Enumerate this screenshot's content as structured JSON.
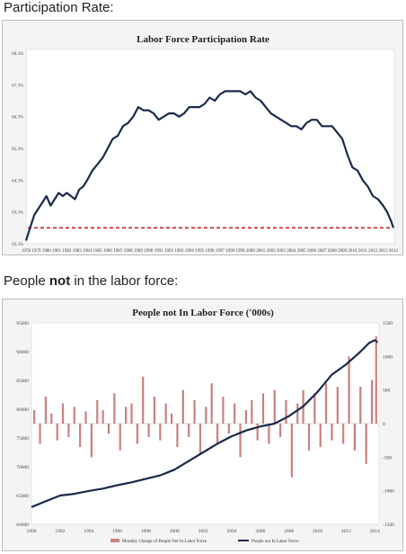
{
  "caption1": {
    "prefix": "Participation Rate:"
  },
  "caption2": {
    "before": "People ",
    "bold": "not",
    "after": " in the labor force:"
  },
  "colors": {
    "line": "#1a2a4a",
    "reference": "#cc2222",
    "bars": "#c98080",
    "background": "#f4f4f4"
  },
  "chart_data": [
    {
      "type": "line",
      "title": "Labor Force Participation Rate",
      "xlabel": "",
      "ylabel": "",
      "x_tick_labels": [
        "1978",
        "1979",
        "1980",
        "1981",
        "1982",
        "1983",
        "1984",
        "1985",
        "1986",
        "1987",
        "1988",
        "1989",
        "1990",
        "1991",
        "1992",
        "1993",
        "1994",
        "1995",
        "1996",
        "1997",
        "1998",
        "1999",
        "2000",
        "2001",
        "2002",
        "2003",
        "2004",
        "2005",
        "2006",
        "2007",
        "2008",
        "2009",
        "2010",
        "2011",
        "2012",
        "2013",
        "2014"
      ],
      "y_tick_labels": [
        "62.3%",
        "63.3%",
        "64.3%",
        "65.3%",
        "66.3%",
        "67.3%",
        "68.3%"
      ],
      "ylim": [
        62.3,
        68.3
      ],
      "xlim": [
        1978,
        2014.1
      ],
      "grid": false,
      "series": [
        {
          "x": [
            1978.0,
            1978.4,
            1978.8,
            1979.2,
            1979.6,
            1980.0,
            1980.4,
            1980.8,
            1981.2,
            1981.6,
            1982.0,
            1982.4,
            1982.8,
            1983.2,
            1983.6,
            1984.0,
            1984.5,
            1985.0,
            1985.5,
            1986.0,
            1986.5,
            1987.0,
            1987.5,
            1988.0,
            1988.5,
            1989.0,
            1989.5,
            1990.0,
            1990.5,
            1991.0,
            1991.5,
            1992.0,
            1992.5,
            1993.0,
            1993.5,
            1994.0,
            1994.5,
            1995.0,
            1995.5,
            1996.0,
            1996.5,
            1997.0,
            1997.5,
            1998.0,
            1998.5,
            1999.0,
            1999.5,
            2000.0,
            2000.5,
            2001.0,
            2001.5,
            2002.0,
            2002.5,
            2003.0,
            2003.5,
            2004.0,
            2004.5,
            2005.0,
            2005.5,
            2006.0,
            2006.5,
            2007.0,
            2007.5,
            2008.0,
            2008.5,
            2009.0,
            2009.5,
            2010.0,
            2010.5,
            2011.0,
            2011.5,
            2012.0,
            2012.5,
            2013.0,
            2013.4,
            2013.8,
            2014.0
          ],
          "values": [
            62.4,
            62.8,
            63.2,
            63.4,
            63.6,
            63.8,
            63.5,
            63.7,
            63.9,
            63.8,
            63.9,
            63.8,
            63.7,
            64.0,
            64.1,
            64.3,
            64.6,
            64.8,
            65.0,
            65.3,
            65.6,
            65.7,
            66.0,
            66.1,
            66.3,
            66.6,
            66.5,
            66.5,
            66.4,
            66.2,
            66.3,
            66.4,
            66.4,
            66.3,
            66.4,
            66.6,
            66.6,
            66.6,
            66.7,
            66.9,
            66.8,
            67.0,
            67.1,
            67.1,
            67.1,
            67.1,
            67.0,
            67.1,
            66.9,
            66.8,
            66.6,
            66.4,
            66.3,
            66.2,
            66.1,
            66.0,
            66.0,
            65.9,
            66.1,
            66.2,
            66.2,
            66.0,
            66.0,
            66.0,
            65.8,
            65.6,
            65.1,
            64.7,
            64.6,
            64.3,
            64.1,
            63.8,
            63.7,
            63.5,
            63.3,
            63.0,
            62.8
          ]
        }
      ],
      "reference_line": 62.8
    },
    {
      "type": "bar",
      "title": "People not In Labor Force ('000s)",
      "xlabel": "",
      "ylabel": "",
      "x_tick_labels": [
        "1990",
        "1992",
        "1994",
        "1996",
        "1998",
        "2000",
        "2002",
        "2004",
        "2006",
        "2008",
        "2010",
        "2012",
        "2014"
      ],
      "y_left_tick_labels": [
        "60000",
        "65000",
        "70000",
        "75000",
        "80000",
        "85000",
        "90000",
        "95000"
      ],
      "y_right_tick_labels": [
        "1500",
        "1000",
        "500",
        "0",
        "-500",
        "-1000",
        "-1500"
      ],
      "ylim_left": [
        60000,
        95000
      ],
      "ylim_right": [
        -1500,
        1500
      ],
      "xlim": [
        1990,
        2014.3
      ],
      "grid": false,
      "series": [
        {
          "name": "Monthly Change of People Not In Labor Force",
          "axis": "right",
          "x": [
            1990.2,
            1990.6,
            1991.0,
            1991.4,
            1991.8,
            1992.2,
            1992.6,
            1993.0,
            1993.4,
            1993.8,
            1994.2,
            1994.6,
            1995.0,
            1995.4,
            1995.8,
            1996.2,
            1996.6,
            1997.0,
            1997.4,
            1997.8,
            1998.2,
            1998.6,
            1999.0,
            1999.4,
            1999.8,
            2000.2,
            2000.6,
            2001.0,
            2001.4,
            2001.8,
            2002.2,
            2002.6,
            2003.0,
            2003.4,
            2003.8,
            2004.2,
            2004.6,
            2005.0,
            2005.4,
            2005.8,
            2006.2,
            2006.6,
            2007.0,
            2007.4,
            2007.8,
            2008.2,
            2008.6,
            2009.0,
            2009.4,
            2009.8,
            2010.2,
            2010.6,
            2011.0,
            2011.4,
            2011.8,
            2012.2,
            2012.6,
            2013.0,
            2013.4,
            2013.8,
            2014.1
          ],
          "values": [
            200,
            -300,
            400,
            150,
            -250,
            300,
            -200,
            250,
            -350,
            180,
            -500,
            350,
            200,
            -150,
            450,
            -400,
            250,
            300,
            -300,
            700,
            -200,
            400,
            -250,
            300,
            150,
            -350,
            500,
            -200,
            350,
            -450,
            250,
            600,
            -300,
            400,
            -150,
            300,
            -500,
            200,
            350,
            -250,
            450,
            -300,
            500,
            -200,
            350,
            -800,
            300,
            500,
            -400,
            450,
            -350,
            600,
            -250,
            550,
            -300,
            1000,
            -400,
            550,
            -600,
            650,
            1300
          ]
        },
        {
          "name": "People not In Labor Force",
          "axis": "left",
          "x": [
            1990.0,
            1991.0,
            1992.0,
            1993.0,
            1994.0,
            1995.0,
            1996.0,
            1997.0,
            1998.0,
            1999.0,
            2000.0,
            2001.0,
            2002.0,
            2003.0,
            2004.0,
            2005.0,
            2006.0,
            2007.0,
            2008.0,
            2009.0,
            2010.0,
            2011.0,
            2012.0,
            2013.0,
            2013.6,
            2014.0,
            2014.2
          ],
          "values": [
            63000,
            64000,
            65000,
            65300,
            65800,
            66200,
            66800,
            67300,
            67900,
            68500,
            69500,
            71000,
            72500,
            74000,
            75300,
            76300,
            77000,
            77500,
            78800,
            80500,
            83000,
            86000,
            87800,
            90000,
            91500,
            92000,
            91600
          ]
        }
      ],
      "legend": "bottom"
    }
  ]
}
